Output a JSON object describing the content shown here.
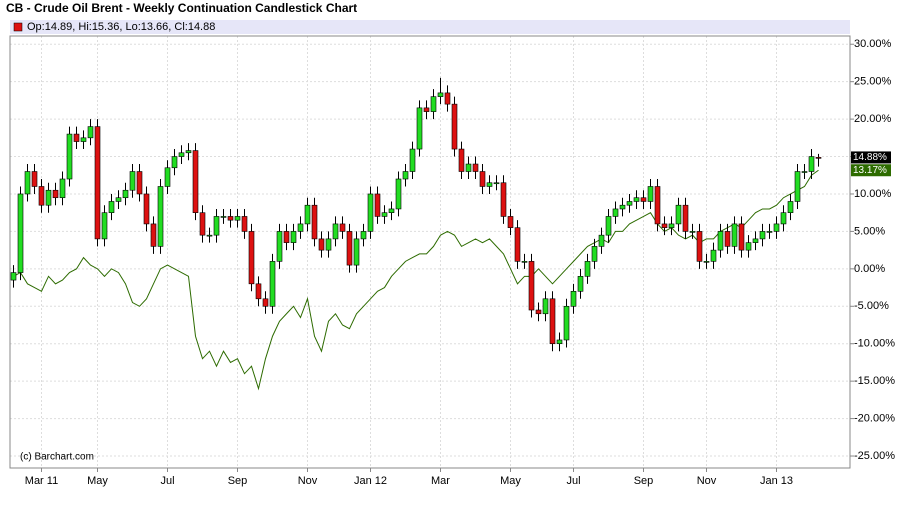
{
  "chart_data": {
    "type": "candlestick",
    "title": "CB - Crude Oil Brent - Weekly Continuation Candlestick Chart",
    "legend_text": "Op:14.89, Hi:15.36, Lo:13.66, Cl:14.88",
    "credit": "(c) Barchart.com",
    "up_color": "#22dd22",
    "down_color": "#dd1111",
    "grid": true,
    "ylim": [
      -26.6,
      31.1
    ],
    "yticks": [
      {
        "value": 30,
        "label": "30.00%"
      },
      {
        "value": 25,
        "label": "25.00%"
      },
      {
        "value": 20,
        "label": "20.00%"
      },
      {
        "value": 15,
        "label": "15.00%"
      },
      {
        "value": 10,
        "label": "10.00%"
      },
      {
        "value": 5,
        "label": "5.00%"
      },
      {
        "value": 0,
        "label": "0.00%"
      },
      {
        "value": -5,
        "label": "-5.00%"
      },
      {
        "value": -10,
        "label": "-10.00%"
      },
      {
        "value": -15,
        "label": "-15.00%"
      },
      {
        "value": -20,
        "label": "-20.00%"
      },
      {
        "value": -25,
        "label": "-25.00%"
      }
    ],
    "categories": [
      null,
      null,
      null,
      null,
      "Mar 11",
      null,
      null,
      null,
      null,
      null,
      null,
      null,
      "May",
      null,
      null,
      null,
      null,
      null,
      null,
      null,
      null,
      null,
      "Jul",
      null,
      null,
      null,
      null,
      null,
      null,
      null,
      null,
      null,
      "Sep",
      null,
      null,
      null,
      null,
      null,
      null,
      null,
      null,
      null,
      "Nov",
      null,
      null,
      null,
      null,
      null,
      null,
      null,
      null,
      "Jan 12",
      null,
      null,
      null,
      null,
      null,
      null,
      null,
      null,
      null,
      "Mar",
      null,
      null,
      null,
      null,
      null,
      null,
      null,
      null,
      null,
      "May",
      null,
      null,
      null,
      null,
      null,
      null,
      null,
      null,
      "Jul",
      null,
      null,
      null,
      null,
      null,
      null,
      null,
      null,
      null,
      "Sep",
      null,
      null,
      null,
      null,
      null,
      null,
      null,
      null,
      "Nov",
      null,
      null,
      null,
      null,
      null,
      null,
      null,
      null,
      null,
      "Jan 13",
      null,
      null,
      null,
      null,
      null,
      null
    ],
    "open": [
      -1.5,
      -0.5,
      10,
      13,
      11,
      8.5,
      10.5,
      9.5,
      12,
      18,
      17,
      17.5,
      19,
      4,
      7.5,
      9,
      9.5,
      10.5,
      13,
      10,
      6,
      3,
      11,
      13.5,
      15,
      15.5,
      15.8,
      7.5,
      4.5,
      4.5,
      7,
      7,
      6.5,
      7,
      5,
      -2,
      -4,
      -5,
      1,
      5,
      3.5,
      5,
      6,
      8.5,
      4,
      2.5,
      4,
      6,
      5,
      0.5,
      4,
      5,
      10,
      7,
      7.5,
      8,
      12,
      13,
      16,
      21.5,
      21,
      23,
      23.5,
      22,
      16,
      13,
      14,
      13,
      11,
      11.5,
      11.5,
      7,
      5.5,
      1,
      1,
      -5.5,
      -6,
      -4,
      -10,
      -9.5,
      -5,
      -3,
      -1,
      1,
      3,
      4.5,
      7,
      8,
      8.5,
      9,
      9.5,
      9,
      11,
      6,
      5.5,
      6,
      8.5,
      5,
      5,
      1,
      1,
      2.5,
      5,
      3,
      6,
      2.5,
      3.5,
      4,
      5,
      5,
      6,
      7.5,
      9,
      13,
      13,
      14.89
    ],
    "high": [
      0.5,
      11,
      14,
      14,
      12,
      11.5,
      11.5,
      13,
      19,
      19,
      18.5,
      20,
      20,
      8.5,
      10,
      10.5,
      11.5,
      14,
      14,
      11,
      7,
      12,
      14.5,
      16,
      16.5,
      16.8,
      16.8,
      8.5,
      5.5,
      8,
      8,
      8,
      8,
      8,
      6,
      -1,
      -3,
      2,
      6,
      6,
      6,
      7,
      9.5,
      9.5,
      5,
      5,
      7,
      7,
      6,
      5,
      6,
      11,
      11,
      8.5,
      9,
      13,
      14,
      17,
      22.5,
      22.5,
      24,
      25.5,
      24.5,
      23,
      17,
      15,
      15,
      14,
      12.5,
      12.5,
      12.5,
      8,
      6.5,
      2,
      2,
      -4.5,
      -3,
      -3,
      -8.5,
      -4,
      -2,
      0,
      2,
      4,
      5.5,
      8,
      9,
      9.5,
      10,
      10.5,
      10.5,
      12,
      12,
      7,
      7,
      9.5,
      9.5,
      6,
      6,
      2,
      3.5,
      6,
      6,
      7,
      7,
      4.5,
      5,
      6,
      6,
      7,
      8.5,
      10,
      14,
      14,
      16,
      15.36
    ],
    "low": [
      -2.5,
      -1.5,
      9,
      10,
      7.5,
      7.5,
      8.5,
      8.5,
      11,
      16,
      16,
      16.5,
      3,
      3,
      6.5,
      8,
      8.5,
      9.5,
      9,
      5,
      2,
      2,
      10,
      12.5,
      14,
      14.5,
      6.5,
      3.5,
      3.5,
      3.5,
      6,
      5.5,
      5.5,
      4,
      -3,
      -5,
      -6,
      -6,
      0,
      2.5,
      2.5,
      4,
      5,
      3,
      1.5,
      1.5,
      3,
      4,
      -0.5,
      -0.5,
      3,
      4,
      6,
      6,
      6.5,
      7,
      11,
      12,
      15,
      20,
      20,
      22,
      21,
      15,
      12,
      12,
      12,
      10,
      10,
      10.5,
      6,
      4.5,
      0,
      0,
      -6.5,
      -7,
      -7,
      -11,
      -11,
      -10.5,
      -6,
      -4,
      -2,
      0,
      2,
      3.5,
      6,
      7,
      7.5,
      8,
      8,
      8,
      5,
      4.5,
      4.5,
      5,
      4,
      4,
      0,
      0,
      0,
      1.5,
      2,
      2,
      1.5,
      1.5,
      2.5,
      3,
      4,
      4,
      5,
      6.5,
      8,
      12,
      12,
      13.66
    ],
    "close": [
      -0.5,
      10,
      13,
      11,
      8.5,
      10.5,
      9.5,
      12,
      18,
      17,
      17.5,
      19,
      4,
      7.5,
      9,
      9.5,
      10.5,
      13,
      10,
      6,
      3,
      11,
      13.5,
      15,
      15.5,
      15.8,
      7.5,
      4.5,
      4.5,
      7,
      7,
      6.5,
      7,
      5,
      -2,
      -4,
      -5,
      1,
      5,
      3.5,
      5,
      6,
      8.5,
      4,
      2.5,
      4,
      6,
      5,
      0.5,
      4,
      5,
      10,
      7,
      7.5,
      8,
      12,
      13,
      16,
      21.5,
      21,
      23,
      23.5,
      22,
      16,
      13,
      14,
      13,
      11,
      11.5,
      11.5,
      7,
      5.5,
      1,
      1,
      -5.5,
      -6,
      -4,
      -10,
      -9.5,
      -5,
      -3,
      -1,
      1,
      3,
      4.5,
      7,
      8,
      8.5,
      9,
      9.5,
      9,
      11,
      6,
      5.5,
      6,
      8.5,
      5,
      5,
      1,
      1,
      2.5,
      5,
      3,
      6,
      2.5,
      3.5,
      4,
      5,
      5,
      6,
      7.5,
      9,
      13,
      13,
      15,
      14.88
    ],
    "last_label": "14.88%",
    "comparison": {
      "color": "#2d6b00",
      "label": "13.17%",
      "values": [
        -1,
        -0.5,
        -2,
        -2.5,
        -3,
        -1,
        -2,
        -1.5,
        -0.5,
        0,
        1.5,
        0.5,
        0,
        -1,
        0,
        -0.5,
        -2,
        -4.5,
        -5,
        -4,
        -2,
        0,
        0.5,
        0,
        -0.5,
        -1,
        -9,
        -12,
        -11,
        -13,
        -11,
        -12.5,
        -12,
        -14,
        -13,
        -16,
        -12,
        -9,
        -7,
        -6,
        -5,
        -6.5,
        -4,
        -9,
        -11,
        -7,
        -6,
        -7.5,
        -8,
        -6,
        -5,
        -4,
        -3,
        -2.5,
        -1,
        0,
        1,
        1.5,
        2,
        2,
        3,
        4.5,
        5,
        4.5,
        3,
        3.5,
        4,
        3.5,
        4,
        3,
        2,
        0,
        -2,
        -1,
        -1,
        0,
        -1,
        -2,
        -1,
        0,
        1,
        2,
        3,
        3.5,
        4,
        3.5,
        5,
        5,
        6,
        6.5,
        7,
        7.5,
        6,
        5,
        5.5,
        4.5,
        4,
        4.5,
        3.5,
        4,
        4,
        5,
        5.5,
        6,
        5.5,
        6.5,
        7.5,
        8,
        8,
        8.5,
        9.5,
        10,
        10.5,
        11,
        12.5,
        13.17
      ]
    }
  }
}
